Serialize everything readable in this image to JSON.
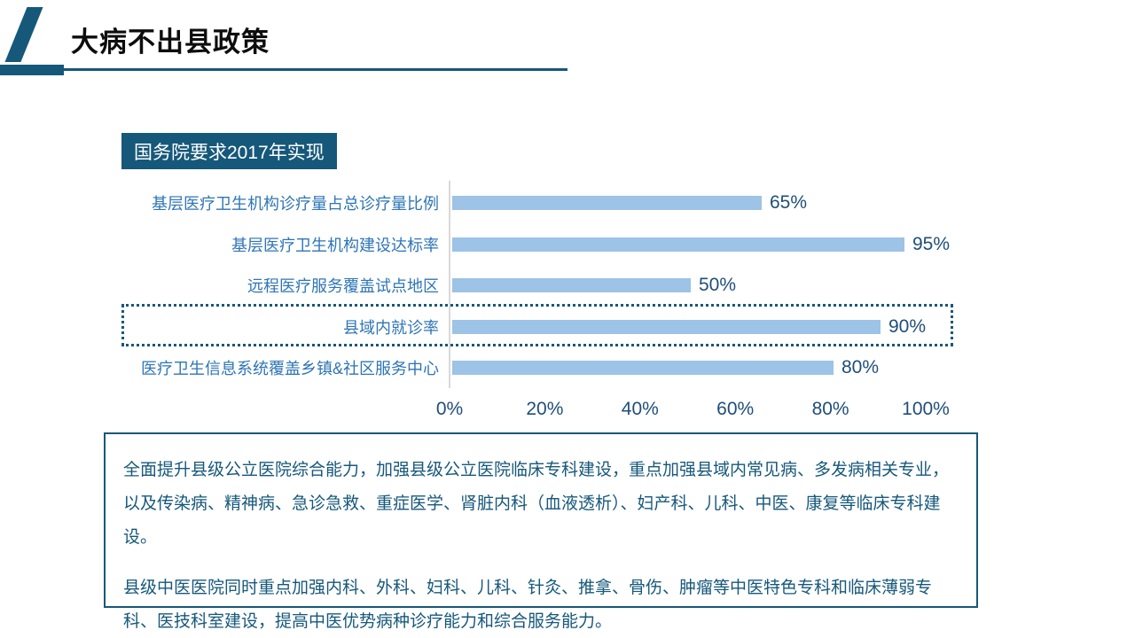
{
  "header": {
    "title": "大病不出县政策"
  },
  "chart": {
    "header_label": "国务院要求2017年实现"
  },
  "chart_data": {
    "type": "bar",
    "orientation": "horizontal",
    "title": "国务院要求2017年实现",
    "categories": [
      "基层医疗卫生机构诊疗量占总诊疗量比例",
      "基层医疗卫生机构建设达标率",
      "远程医疗服务覆盖试点地区",
      "县域内就诊率",
      "医疗卫生信息系统覆盖乡镇&社区服务中心"
    ],
    "values": [
      65,
      95,
      50,
      90,
      80
    ],
    "value_labels": [
      "65%",
      "95%",
      "50%",
      "90%",
      "80%"
    ],
    "highlight_index": 3,
    "x_ticks": [
      "0%",
      "20%",
      "40%",
      "60%",
      "80%",
      "100%"
    ],
    "xlim": [
      0,
      100
    ],
    "grid": false,
    "legend": false
  },
  "info_box": {
    "paragraph1": "全面提升县级公立医院综合能力，加强县级公立医院临床专科建设，重点加强县域内常见病、多发病相关专业，以及传染病、精神病、急诊急救、重症医学、肾脏内科（血液透析）、妇产科、儿科、中医、康复等临床专科建设。",
    "paragraph2": "县级中医医院同时重点加强内科、外科、妇科、儿科、针灸、推拿、骨伤、肿瘤等中医特色专科和临床薄弱专科、医技科室建设，提高中医优势病种诊疗能力和综合服务能力。"
  },
  "colors": {
    "accent_teal": "#16587A",
    "category_label_blue": "#2E75B6",
    "value_label_navy": "#1F4E79",
    "bar_fill": "#9DC3E6",
    "axis_line_gray": "#D9D9D9"
  }
}
